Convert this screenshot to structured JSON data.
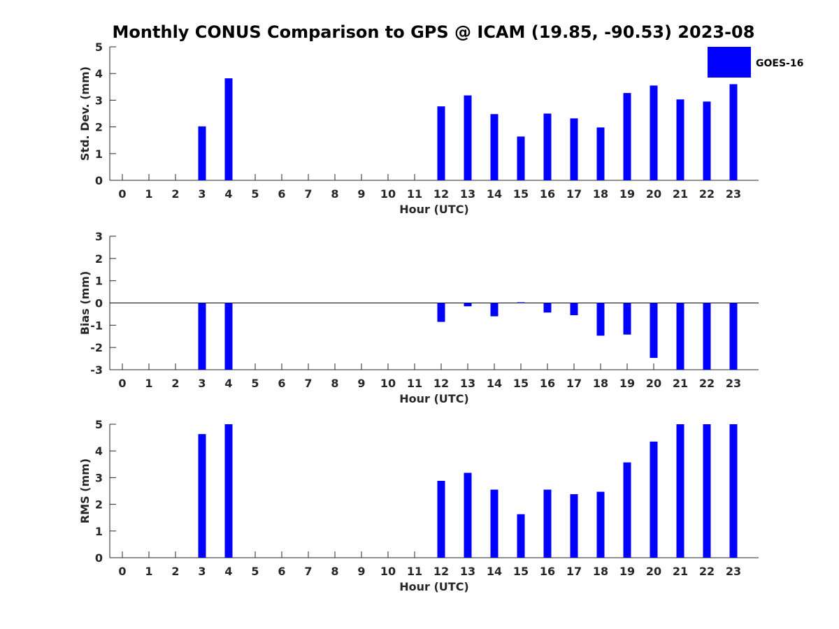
{
  "title": "Monthly CONUS Comparison to GPS @ ICAM (19.85, -90.53) 2023-08",
  "legend": {
    "label": "GOES-16",
    "color": "#0000ff"
  },
  "bar_color": "#0000ff",
  "chart_data": [
    {
      "type": "bar",
      "ylabel": "Std. Dev. (mm)",
      "xlabel": "Hour (UTC)",
      "categories": [
        "0",
        "1",
        "2",
        "3",
        "4",
        "5",
        "6",
        "7",
        "8",
        "9",
        "10",
        "11",
        "12",
        "13",
        "14",
        "15",
        "16",
        "17",
        "18",
        "19",
        "20",
        "21",
        "22",
        "23"
      ],
      "yticks": [
        0,
        1,
        2,
        3,
        4,
        5
      ],
      "ylim": [
        0,
        5
      ],
      "series": [
        {
          "name": "GOES-16",
          "values": [
            null,
            null,
            null,
            2.02,
            3.82,
            null,
            null,
            null,
            null,
            null,
            null,
            null,
            2.77,
            3.18,
            2.48,
            1.64,
            2.5,
            2.32,
            1.98,
            3.27,
            3.55,
            3.03,
            2.95,
            3.6
          ]
        }
      ],
      "legend": "top-right"
    },
    {
      "type": "bar",
      "ylabel": "Bias (mm)",
      "xlabel": "Hour (UTC)",
      "categories": [
        "0",
        "1",
        "2",
        "3",
        "4",
        "5",
        "6",
        "7",
        "8",
        "9",
        "10",
        "11",
        "12",
        "13",
        "14",
        "15",
        "16",
        "17",
        "18",
        "19",
        "20",
        "21",
        "22",
        "23"
      ],
      "yticks": [
        -3,
        -2,
        -1,
        0,
        1,
        2,
        3
      ],
      "ylim": [
        -3,
        3
      ],
      "zero_line": true,
      "series": [
        {
          "name": "GOES-16",
          "values": [
            null,
            null,
            null,
            -3.0,
            -3.0,
            null,
            null,
            null,
            null,
            null,
            null,
            null,
            -0.85,
            -0.15,
            -0.6,
            0.03,
            -0.43,
            -0.55,
            -1.47,
            -1.42,
            -2.47,
            -3.0,
            -3.0,
            -3.0
          ]
        }
      ]
    },
    {
      "type": "bar",
      "ylabel": "RMS (mm)",
      "xlabel": "Hour (UTC)",
      "categories": [
        "0",
        "1",
        "2",
        "3",
        "4",
        "5",
        "6",
        "7",
        "8",
        "9",
        "10",
        "11",
        "12",
        "13",
        "14",
        "15",
        "16",
        "17",
        "18",
        "19",
        "20",
        "21",
        "22",
        "23"
      ],
      "yticks": [
        0,
        1,
        2,
        3,
        4,
        5
      ],
      "ylim": [
        0,
        5
      ],
      "series": [
        {
          "name": "GOES-16",
          "values": [
            null,
            null,
            null,
            4.63,
            5.0,
            null,
            null,
            null,
            null,
            null,
            null,
            null,
            2.88,
            3.18,
            2.55,
            1.63,
            2.55,
            2.38,
            2.47,
            3.57,
            4.35,
            5.0,
            5.0,
            5.0
          ]
        }
      ]
    }
  ]
}
